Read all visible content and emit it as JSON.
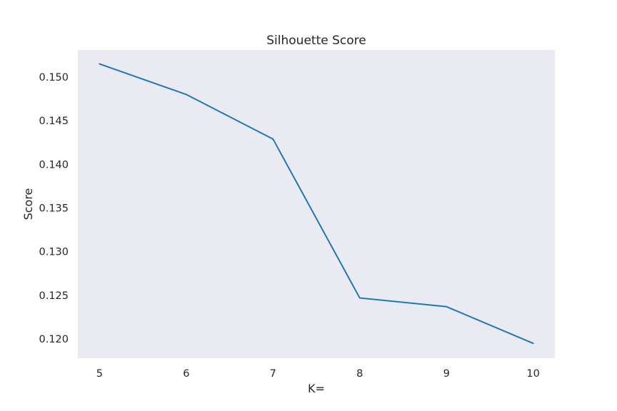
{
  "chart_data": {
    "type": "line",
    "title": "Silhouette Score",
    "xlabel": "K=",
    "ylabel": "Score",
    "x": [
      5,
      6,
      7,
      8,
      9,
      10
    ],
    "series": [
      {
        "values": [
          0.1515,
          0.148,
          0.1429,
          0.1247,
          0.1237,
          0.1195
        ]
      }
    ],
    "xticks": [
      "5",
      "6",
      "7",
      "8",
      "9",
      "10"
    ],
    "yticks": [
      "0.120",
      "0.125",
      "0.130",
      "0.135",
      "0.140",
      "0.145",
      "0.150"
    ],
    "xlim": [
      4.75,
      10.25
    ],
    "ylim": [
      0.1178,
      0.1531
    ],
    "grid": false,
    "background_color": "#eaeaf2",
    "line_color": "#1f77b4"
  }
}
